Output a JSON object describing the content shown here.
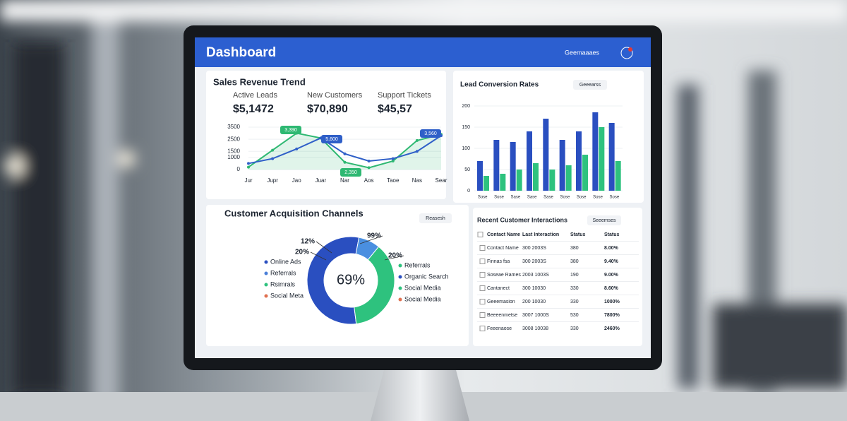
{
  "header": {
    "title": "Dashboard",
    "account": "Geemaaaes"
  },
  "revenue_panel": {
    "title": "Sales Revenue Trend",
    "kpis": [
      {
        "label": "Active Leads",
        "value": "$5,1472"
      },
      {
        "label": "New Customers",
        "value": "$70,890"
      },
      {
        "label": "Support Tickets",
        "value": "$45,57"
      }
    ],
    "annotations": [
      "3,390",
      "5,600",
      "2,350",
      "3,560"
    ],
    "chart_data": {
      "type": "line",
      "categories": [
        "Jur",
        "Jupr",
        "Jao",
        "Juar",
        "Nar",
        "Aos",
        "Taoe",
        "Nas",
        "Sear"
      ],
      "ylim": [
        0,
        3500
      ],
      "yticks": [
        0,
        1000,
        1500,
        2500,
        3500
      ],
      "series": [
        {
          "name": "Green",
          "color": "#2eb872",
          "values": [
            200,
            1600,
            3000,
            2600,
            600,
            150,
            700,
            2400,
            2900
          ]
        },
        {
          "name": "Blue",
          "color": "#2f5fc8",
          "values": [
            500,
            900,
            1700,
            2600,
            1300,
            700,
            900,
            1500,
            2800
          ]
        }
      ]
    }
  },
  "conversion_panel": {
    "title": "Lead Conversion Rates",
    "button": "Geeearss",
    "chart_data": {
      "type": "bar",
      "categories": [
        "Sose",
        "Sose",
        "Sase",
        "Sase",
        "Sase",
        "Sose",
        "Sose",
        "Sose",
        "Sose"
      ],
      "ylim": [
        0,
        200
      ],
      "yticks": [
        0,
        50,
        100,
        150,
        200
      ],
      "series": [
        {
          "name": "Blue",
          "color": "#2a4fc0",
          "values": [
            70,
            120,
            115,
            140,
            170,
            120,
            140,
            185,
            160
          ]
        },
        {
          "name": "Green",
          "color": "#2ec27e",
          "values": [
            35,
            40,
            50,
            65,
            50,
            60,
            85,
            150,
            70
          ]
        }
      ]
    }
  },
  "channels_panel": {
    "title": "Customer Acquisition Channels",
    "button": "Reasesh",
    "center_label": "69%",
    "callouts": [
      "12%",
      "20%",
      "99%",
      "20%"
    ],
    "legend_left": [
      {
        "name": "Online Ads",
        "color": "#2a4fc0"
      },
      {
        "name": "Referrals",
        "color": "#4a7fd8"
      },
      {
        "name": "Rsimrals",
        "color": "#2ec27e"
      },
      {
        "name": "Social Meta",
        "color": "#e07050"
      }
    ],
    "legend_right": [
      {
        "name": "Referrals",
        "color": "#2ec27e"
      },
      {
        "name": "Organic Search",
        "color": "#2a4fc0"
      },
      {
        "name": "Social Media",
        "color": "#2ec27e"
      },
      {
        "name": "Social Media",
        "color": "#e07050"
      }
    ],
    "chart_data": {
      "type": "donut",
      "values": [
        55,
        37,
        8
      ],
      "colors": [
        "#2a4fc0",
        "#2ec27e",
        "#4a8fe0"
      ]
    }
  },
  "table": {
    "title": "Recent Customer Interactions",
    "button": "Seeemses",
    "columns": [
      "Contact Name",
      "Last Interaction",
      "Status",
      "Status"
    ],
    "rows": [
      [
        "Contact Name",
        "300 2003S",
        "380",
        "8.00%"
      ],
      [
        "Finnas fsa",
        "300 2003S",
        "380",
        "9.40%"
      ],
      [
        "Soseae Rames",
        "2003 1003S",
        "190",
        "9.00%"
      ],
      [
        "Cantanect",
        "300 10030",
        "330",
        "8.60%"
      ],
      [
        "Geeemasion",
        "200 10030",
        "330",
        "1000%"
      ],
      [
        "Beeeenmetse",
        "3007 1000S",
        "530",
        "7800%"
      ],
      [
        "Feeenaose",
        "3008 10038",
        "330",
        "2460%"
      ]
    ]
  }
}
